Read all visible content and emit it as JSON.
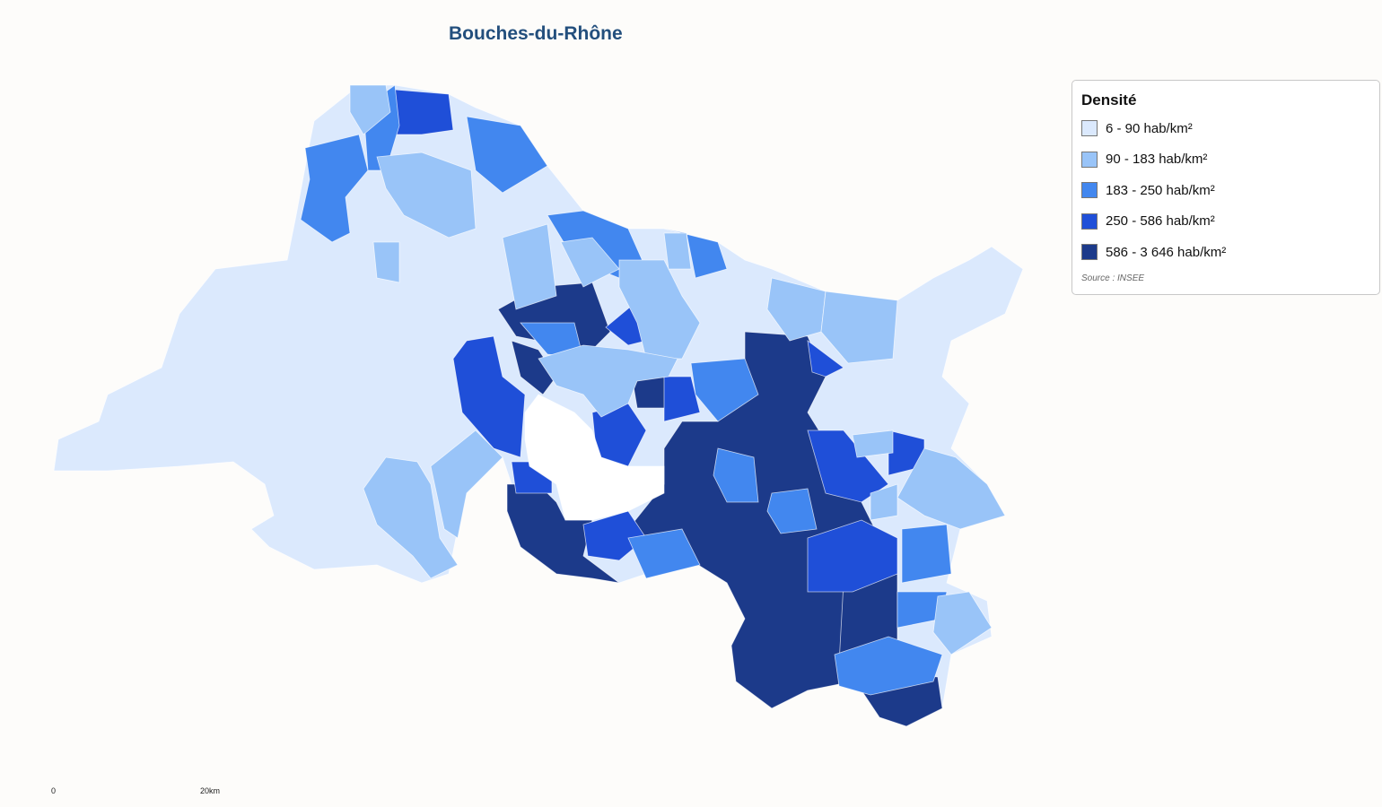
{
  "map": {
    "title": "Bouches-du-Rhône",
    "legend": {
      "title": "Densité",
      "classes": [
        {
          "label": "6 - 90 hab/km²",
          "color": "#dbe9fd"
        },
        {
          "label": "90 - 183 hab/km²",
          "color": "#99c4f8"
        },
        {
          "label": "183 - 250 hab/km²",
          "color": "#4287ef"
        },
        {
          "label": "250 - 586 hab/km²",
          "color": "#1f4fd8"
        },
        {
          "label": "586 - 3 646 hab/km²",
          "color": "#1c3a8a"
        }
      ]
    },
    "source": "Source : INSEE",
    "scale_bar": {
      "start": "0",
      "end": "20km"
    }
  }
}
